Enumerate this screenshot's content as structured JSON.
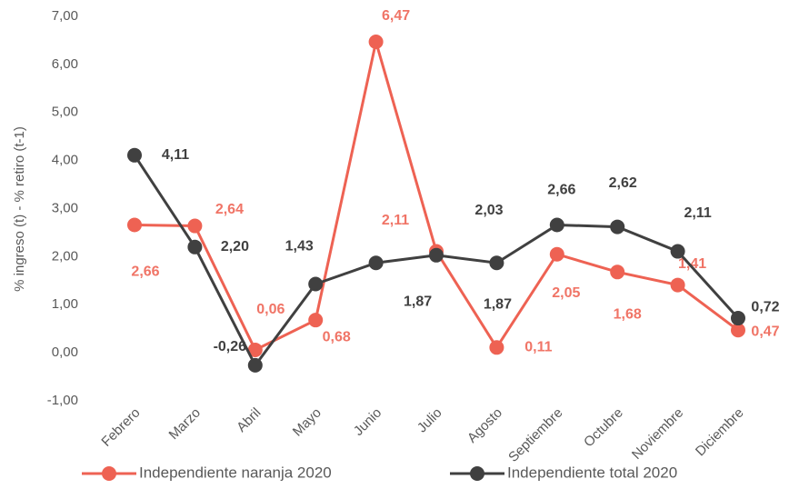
{
  "chart_data": {
    "type": "line",
    "y_label": "% ingreso (t) - % retiro (t-1)",
    "categories": [
      "Febrero",
      "Marzo",
      "Abril",
      "Mayo",
      "Junio",
      "Julio",
      "Agosto",
      "Septiembre",
      "Octubre",
      "Noviembre",
      "Diciembre"
    ],
    "series": [
      {
        "name": "Independiente naranja 2020",
        "color": "#ee6253",
        "label_color": "#f07466",
        "values": [
          2.66,
          2.64,
          0.06,
          0.68,
          6.47,
          2.11,
          0.11,
          2.05,
          1.68,
          1.41,
          0.47
        ],
        "value_labels": [
          "2,66",
          "2,64",
          "0,06",
          "0,68",
          "6,47",
          "2,11",
          "0,11",
          "2,05",
          "1,68",
          "1,41",
          "0,47"
        ]
      },
      {
        "name": "Independiente total 2020",
        "color": "#404040",
        "label_color": "#404040",
        "values": [
          4.11,
          2.2,
          -0.26,
          1.43,
          1.87,
          2.03,
          1.87,
          2.66,
          2.62,
          2.11,
          0.72
        ],
        "value_labels": [
          "4,11",
          "2,20",
          "-0,26",
          "1,43",
          "1,87",
          "2,03",
          "1,87",
          "2,66",
          "2,62",
          "2,11",
          "0,72"
        ]
      }
    ],
    "ylim": [
      -1,
      7
    ],
    "yticks": [
      {
        "value": -1,
        "label": "-1,00"
      },
      {
        "value": 0,
        "label": "0,00"
      },
      {
        "value": 1,
        "label": "1,00"
      },
      {
        "value": 2,
        "label": "2,00"
      },
      {
        "value": 3,
        "label": "3,00"
      },
      {
        "value": 4,
        "label": "4,00"
      },
      {
        "value": 5,
        "label": "5,00"
      },
      {
        "value": 6,
        "label": "6,00"
      },
      {
        "value": 7,
        "label": "7,00"
      }
    ],
    "grid": false,
    "legend": "bottom"
  }
}
